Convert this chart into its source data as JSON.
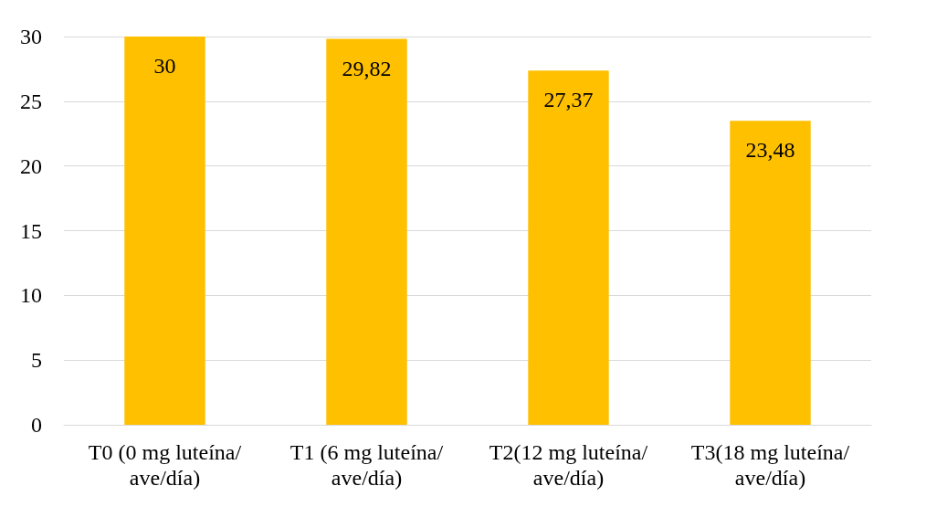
{
  "chart_data": {
    "type": "bar",
    "categories": [
      "T0 (0 mg luteína/ave/día)",
      "T1 (6 mg luteína/ave/día)",
      "T2(12 mg luteína/ave/día)",
      "T3(18 mg luteína/ave/día)"
    ],
    "values": [
      30,
      29.82,
      27.37,
      23.48
    ],
    "value_labels": [
      "30",
      "29,82",
      "27,37",
      "23,48"
    ],
    "color": "#ffc000",
    "ylim": [
      0,
      30
    ],
    "yticks": [
      0,
      5,
      10,
      15,
      20,
      25,
      30
    ],
    "grid": "y"
  }
}
